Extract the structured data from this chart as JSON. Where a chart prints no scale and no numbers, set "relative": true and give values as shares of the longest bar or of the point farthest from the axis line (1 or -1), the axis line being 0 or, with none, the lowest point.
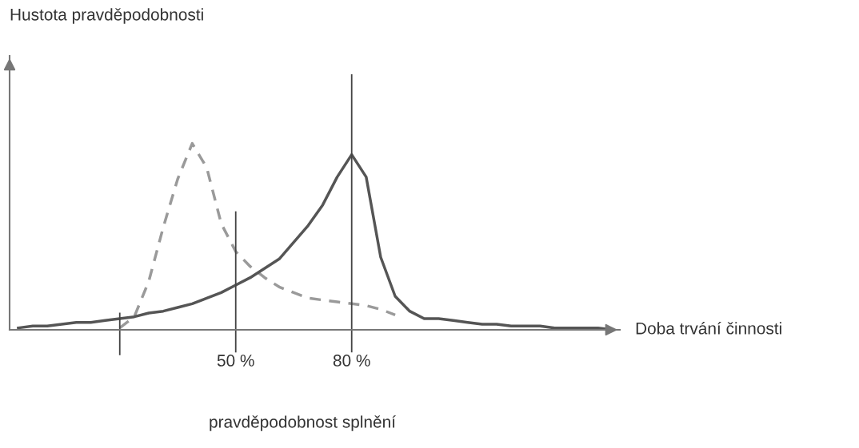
{
  "chart_data": {
    "type": "line",
    "relative": true,
    "xlabel": "Doba trvání činnosti",
    "annotations": [
      "Hustota pravděpodobnosti",
      "pravděpodobnost splnění"
    ],
    "tick_labels": "x",
    "legend": false,
    "categories": [
      null,
      null,
      null,
      null,
      null,
      null,
      null,
      null,
      null,
      null,
      null,
      null,
      null,
      null,
      null,
      "50 %",
      null,
      null,
      null,
      null,
      null,
      null,
      null,
      "80 %",
      null,
      null,
      null,
      null,
      null,
      null,
      null,
      null,
      null,
      null,
      null,
      null,
      null,
      null,
      null,
      null,
      null,
      null
    ],
    "series": [
      {
        "color": "#9a9a9a",
        "line_style": "dashed",
        "values": [
          null,
          null,
          null,
          null,
          null,
          null,
          null,
          0.01,
          0.07,
          0.26,
          0.55,
          0.81,
          1,
          0.87,
          0.57,
          0.42,
          0.34,
          0.28,
          0.23,
          0.2,
          0.17,
          0.16,
          0.15,
          0.14,
          0.13,
          0.11,
          0.08,
          null,
          null,
          null,
          null,
          null,
          null,
          null,
          null,
          null,
          null,
          null,
          null,
          null,
          null,
          null
        ]
      },
      {
        "color": "#555555",
        "line_style": "solid",
        "values": [
          0.01,
          0.02,
          0.02,
          0.03,
          0.04,
          0.04,
          0.05,
          0.06,
          0.07,
          0.09,
          0.1,
          0.12,
          0.14,
          0.17,
          0.2,
          0.24,
          0.28,
          0.33,
          0.38,
          0.47,
          0.56,
          0.67,
          0.82,
          0.94,
          0.82,
          0.39,
          0.18,
          0.1,
          0.06,
          0.06,
          0.05,
          0.04,
          0.03,
          0.03,
          0.02,
          0.02,
          0.02,
          0.01,
          0.01,
          0.01,
          0.01,
          0
        ]
      }
    ],
    "ref_lines": [
      {
        "axis": "x",
        "value": "50 %",
        "color": "#444444"
      },
      {
        "axis": "x",
        "value": "80 %",
        "color": "#444444"
      }
    ]
  }
}
